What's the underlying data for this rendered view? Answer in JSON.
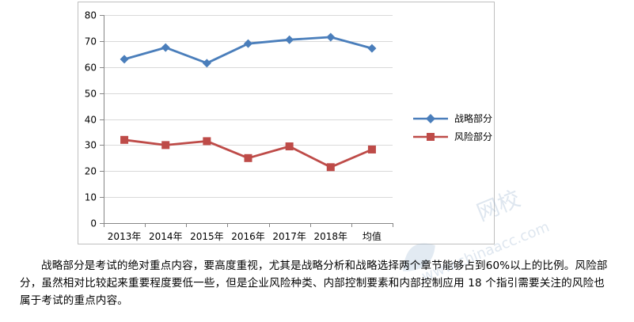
{
  "chart_data": {
    "type": "line",
    "categories": [
      "2013年",
      "2014年",
      "2015年",
      "2016年",
      "2017年",
      "2018年",
      "均值"
    ],
    "series": [
      {
        "name": "战略部分",
        "values": [
          63,
          67.5,
          61.5,
          69,
          70.5,
          71.5,
          67.2
        ],
        "color": "#4a7ebb",
        "marker": "diamond"
      },
      {
        "name": "风险部分",
        "values": [
          32,
          30,
          31.5,
          25,
          29.5,
          21.5,
          28.3
        ],
        "color": "#be4b48",
        "marker": "square"
      }
    ],
    "ylim": [
      0,
      80
    ],
    "yticks": [
      0,
      10,
      20,
      30,
      40,
      50,
      60,
      70,
      80
    ],
    "grid": true,
    "legend": "right"
  },
  "text": {
    "paragraph": "战略部分是考试的绝对重点内容，要高度重视，尤其是战略分析和战略选择两个章节能够占到60%以上的比例。风险部分，虽然相对比较起来重要程度要低一些，但是企业风险种类、内部控制要素和内部控制应用 18 个指引需要关注的风险也属于考试的重点内容。"
  },
  "watermark": {
    "label": "网校",
    "url": "www.chinaacc.com"
  }
}
